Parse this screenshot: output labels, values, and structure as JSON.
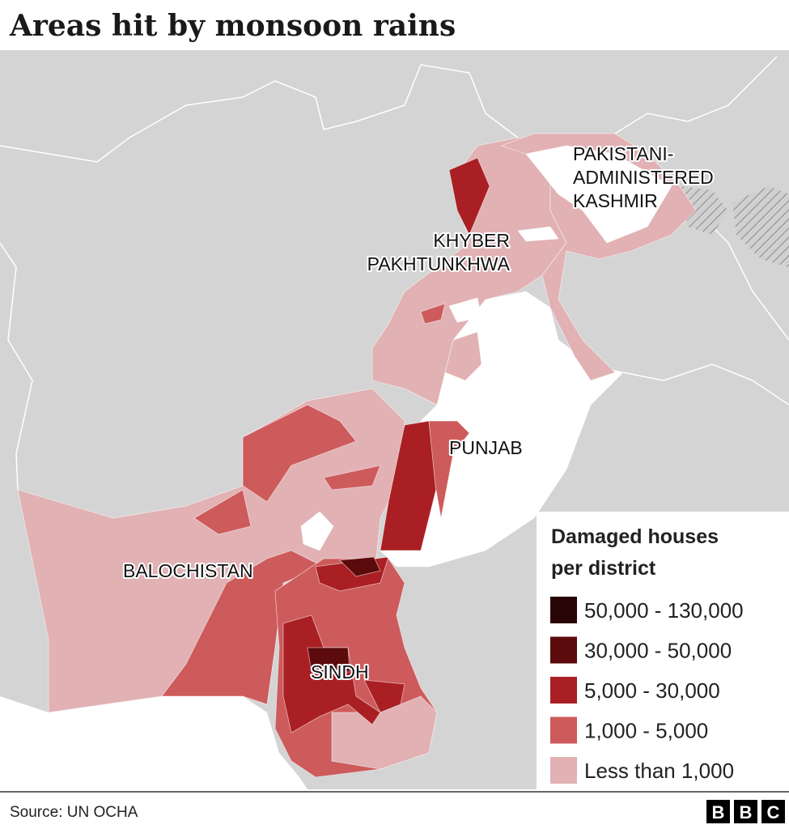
{
  "title": "Areas hit by monsoon rains",
  "regions": [
    {
      "label": "PAKISTANI-"
    },
    {
      "label": "ADMINISTERED"
    },
    {
      "label": "KASHMIR"
    },
    {
      "label": "KHYBER"
    },
    {
      "label": "PAKHTUNKHWA"
    },
    {
      "label": "PUNJAB"
    },
    {
      "label": "BALOCHISTAN"
    },
    {
      "label": "SINDH"
    }
  ],
  "legend": {
    "title": [
      "Damaged houses",
      "per district"
    ],
    "items": [
      {
        "label": "50,000 - 130,000",
        "color": "#2a0505"
      },
      {
        "label": "30,000 - 50,000",
        "color": "#5c0a0b"
      },
      {
        "label": "5,000 - 30,000",
        "color": "#a91f23"
      },
      {
        "label": "1,000 - 5,000",
        "color": "#cd5b5c"
      },
      {
        "label": "Less than 1,000",
        "color": "#e1b1b4"
      }
    ]
  },
  "source": "Source: UN OCHA",
  "logo": [
    "B",
    "B",
    "C"
  ]
}
